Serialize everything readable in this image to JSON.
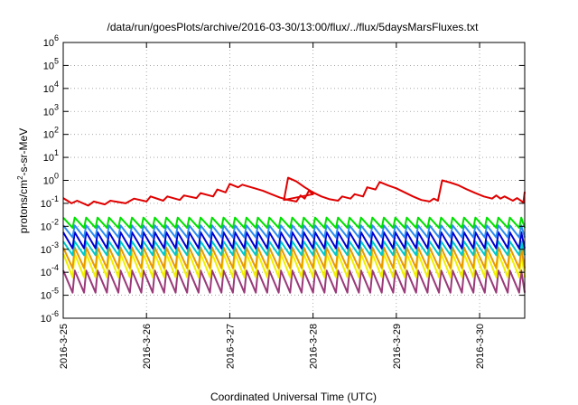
{
  "chart_data": {
    "type": "line",
    "title": "/data/run/goesPlots/archive/2016-03-30/13:00/flux/../flux/5daysMarsFluxes.txt",
    "xlabel": "Coordinated Universal Time (UTC)",
    "ylabel_main": "protons/cm",
    "ylabel_sup": "2",
    "ylabel_rest": "-s-sr-MeV",
    "yscale": "log",
    "ylim": [
      1e-06,
      1000000.0
    ],
    "yticks": [
      {
        "base": "10",
        "exp": "-6"
      },
      {
        "base": "10",
        "exp": "-5"
      },
      {
        "base": "10",
        "exp": "-4"
      },
      {
        "base": "10",
        "exp": "-3"
      },
      {
        "base": "10",
        "exp": "-2"
      },
      {
        "base": "10",
        "exp": "-1"
      },
      {
        "base": "10",
        "exp": "0"
      },
      {
        "base": "10",
        "exp": "1"
      },
      {
        "base": "10",
        "exp": "2"
      },
      {
        "base": "10",
        "exp": "3"
      },
      {
        "base": "10",
        "exp": "4"
      },
      {
        "base": "10",
        "exp": "5"
      },
      {
        "base": "10",
        "exp": "6"
      }
    ],
    "xlim": [
      "2016-03-25 00:00",
      "2016-03-30 13:00"
    ],
    "xticks": [
      "2016-3-25",
      "2016-3-26",
      "2016-3-27",
      "2016-3-28",
      "2016-3-29",
      "2016-3-30"
    ],
    "grid": true,
    "series": [
      {
        "color": "#e00000",
        "width": 2,
        "points": [
          [
            "2016-03-25 00:00",
            0.17
          ],
          [
            "2016-03-25 02:24",
            0.1
          ],
          [
            "2016-03-25 04:00",
            0.13
          ],
          [
            "2016-03-25 07:12",
            0.08
          ],
          [
            "2016-03-25 08:48",
            0.12
          ],
          [
            "2016-03-25 12:00",
            0.09
          ],
          [
            "2016-03-25 13:36",
            0.13
          ],
          [
            "2016-03-25 18:00",
            0.1
          ],
          [
            "2016-03-25 20:24",
            0.16
          ],
          [
            "2016-03-26 00:00",
            0.12
          ],
          [
            "2016-03-26 01:12",
            0.2
          ],
          [
            "2016-03-26 04:48",
            0.13
          ],
          [
            "2016-03-26 06:00",
            0.2
          ],
          [
            "2016-03-26 09:36",
            0.14
          ],
          [
            "2016-03-26 10:48",
            0.22
          ],
          [
            "2016-03-26 14:24",
            0.17
          ],
          [
            "2016-03-26 15:36",
            0.28
          ],
          [
            "2016-03-26 19:12",
            0.2
          ],
          [
            "2016-03-26 20:24",
            0.4
          ],
          [
            "2016-03-26 22:48",
            0.3
          ],
          [
            "2016-03-27 00:00",
            0.7
          ],
          [
            "2016-03-27 02:24",
            0.5
          ],
          [
            "2016-03-27 03:36",
            0.65
          ],
          [
            "2016-03-27 07:12",
            0.45
          ],
          [
            "2016-03-27 09:36",
            0.35
          ],
          [
            "2016-03-27 12:00",
            0.25
          ],
          [
            "2016-03-27 14:24",
            0.18
          ],
          [
            "2016-03-27 16:48",
            0.14
          ],
          [
            "2016-03-27 19:12",
            0.12
          ],
          [
            "2016-03-27 20:24",
            0.22
          ],
          [
            "2016-03-27 21:36",
            0.16
          ],
          [
            "2016-03-27 22:48",
            0.35
          ],
          [
            "2016-03-28 00:00",
            0.25
          ],
          [
            "2016-03-27 15:36",
            0.14
          ],
          [
            "2016-03-27 16:48",
            1.3
          ],
          [
            "2016-03-27 19:12",
            0.9
          ],
          [
            "2016-03-27 21:36",
            0.5
          ],
          [
            "2016-03-28 00:00",
            0.3
          ],
          [
            "2016-03-28 02:24",
            0.2
          ],
          [
            "2016-03-28 04:48",
            0.15
          ],
          [
            "2016-03-28 07:12",
            0.13
          ],
          [
            "2016-03-28 08:24",
            0.2
          ],
          [
            "2016-03-28 10:48",
            0.16
          ],
          [
            "2016-03-28 12:00",
            0.25
          ],
          [
            "2016-03-28 14:24",
            0.2
          ],
          [
            "2016-03-28 15:36",
            0.5
          ],
          [
            "2016-03-28 18:00",
            0.4
          ],
          [
            "2016-03-28 19:12",
            0.85
          ],
          [
            "2016-03-28 21:36",
            0.6
          ],
          [
            "2016-03-29 00:00",
            0.45
          ],
          [
            "2016-03-29 02:24",
            0.3
          ],
          [
            "2016-03-29 04:48",
            0.2
          ],
          [
            "2016-03-29 07:12",
            0.14
          ],
          [
            "2016-03-29 09:36",
            0.12
          ],
          [
            "2016-03-29 10:48",
            0.16
          ],
          [
            "2016-03-29 12:00",
            0.13
          ],
          [
            "2016-03-29 13:12",
            1.0
          ],
          [
            "2016-03-29 15:36",
            0.8
          ],
          [
            "2016-03-29 18:00",
            0.6
          ],
          [
            "2016-03-29 20:24",
            0.4
          ],
          [
            "2016-03-29 22:48",
            0.28
          ],
          [
            "2016-03-30 01:12",
            0.2
          ],
          [
            "2016-03-30 03:36",
            0.16
          ],
          [
            "2016-03-30 04:48",
            0.22
          ],
          [
            "2016-03-30 06:00",
            0.16
          ],
          [
            "2016-03-30 07:12",
            0.2
          ],
          [
            "2016-03-30 09:36",
            0.13
          ],
          [
            "2016-03-30 10:48",
            0.17
          ],
          [
            "2016-03-30 12:36",
            0.11
          ],
          [
            "2016-03-30 13:00",
            0.32
          ]
        ]
      },
      {
        "color": "#00e000",
        "width": 2,
        "sawtooth": {
          "peak": 0.024,
          "trough": 0.0085,
          "period_hours": 3.3
        }
      },
      {
        "color": "#2d8cf0",
        "width": 2,
        "sawtooth": {
          "peak": 0.011,
          "trough": 0.0033,
          "period_hours": 3.3
        }
      },
      {
        "color": "#0000d0",
        "width": 2,
        "sawtooth": {
          "peak": 0.0055,
          "trough": 0.0011,
          "period_hours": 3.3
        }
      },
      {
        "color": "#00c8c8",
        "width": 2,
        "sawtooth": {
          "peak": 0.0022,
          "trough": 0.00055,
          "period_hours": 3.3
        }
      },
      {
        "color": "#e89a00",
        "width": 2,
        "sawtooth": {
          "peak": 0.0012,
          "trough": 0.00015,
          "period_hours": 3.3
        }
      },
      {
        "color": "#f0f000",
        "width": 2,
        "sawtooth": {
          "peak": 0.00065,
          "trough": 6e-05,
          "period_hours": 3.3
        }
      },
      {
        "color": "#9a3a7a",
        "width": 2,
        "sawtooth": {
          "peak": 0.00012,
          "trough": 1.3e-05,
          "period_hours": 3.3
        }
      }
    ]
  }
}
